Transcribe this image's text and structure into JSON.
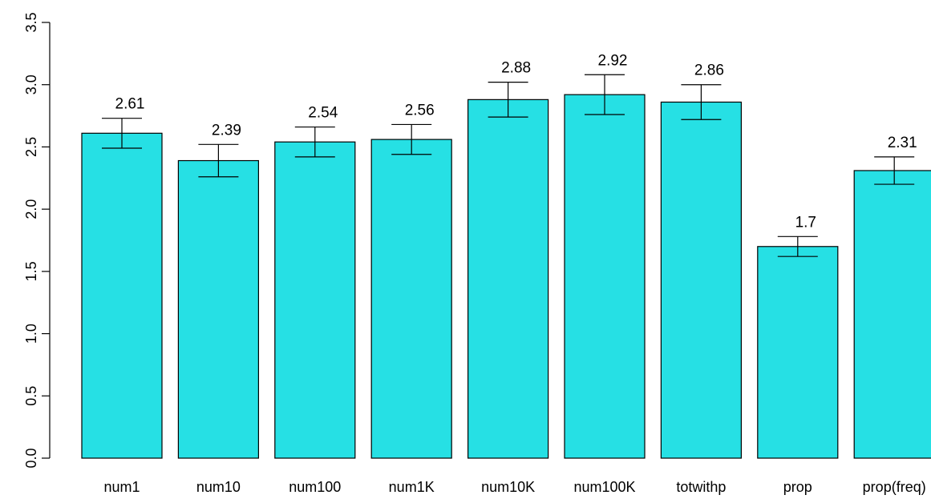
{
  "chart_data": {
    "type": "bar",
    "title": "",
    "xlabel": "",
    "ylabel": "",
    "categories": [
      "num1",
      "num10",
      "num100",
      "num1K",
      "num10K",
      "num100K",
      "totwithp",
      "prop",
      "prop(freq)"
    ],
    "values": [
      2.61,
      2.39,
      2.54,
      2.56,
      2.88,
      2.92,
      2.86,
      1.7,
      2.31
    ],
    "value_labels": [
      "2.61",
      "2.39",
      "2.54",
      "2.56",
      "2.88",
      "2.92",
      "2.86",
      "1.7",
      "2.31"
    ],
    "error_low": [
      2.49,
      2.26,
      2.42,
      2.44,
      2.74,
      2.76,
      2.72,
      1.62,
      2.2
    ],
    "error_high": [
      2.73,
      2.52,
      2.66,
      2.68,
      3.02,
      3.08,
      3.0,
      1.78,
      2.42
    ],
    "ylim": [
      0,
      3.5
    ],
    "yticks": [
      0.0,
      0.5,
      1.0,
      1.5,
      2.0,
      2.5,
      3.0,
      3.5
    ],
    "ytick_labels": [
      "0.0",
      "0.5",
      "1.0",
      "1.5",
      "2.0",
      "2.5",
      "3.0",
      "3.5"
    ],
    "grid": false,
    "legend": "none",
    "bar_color": "#26e0e4",
    "edge_color": "#000000"
  }
}
